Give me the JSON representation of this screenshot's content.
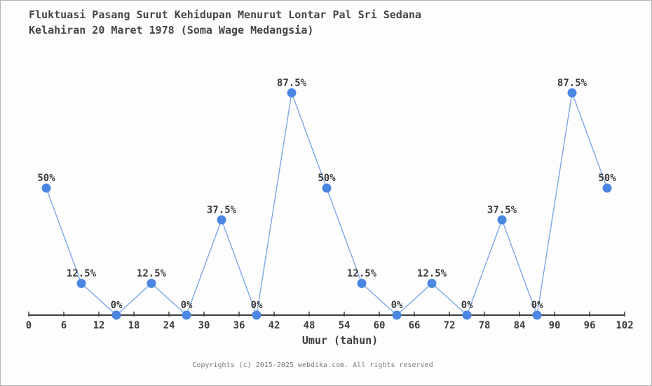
{
  "page": {
    "background": "#fdfdfd",
    "border_color": "#b3b3b3"
  },
  "header": {
    "title_line1": "Fluktuasi Pasang Surut Kehidupan Menurut Lontar Pal Sri Sedana",
    "title_line2": "Kelahiran 20 Maret 1978 (Soma Wage Medangsia)",
    "title_color": "#4a4444"
  },
  "footer": {
    "text": "Copyrights (c) 2015-2025 webdika.com. All rights reserved",
    "color": "#7a7a7a"
  },
  "chart_data": {
    "type": "line",
    "title": "Fluktuasi Pasang Surut Kehidupan Menurut Lontar Pal Sri Sedana Kelahiran 20 Maret 1978 (Soma Wage Medangsia)",
    "xlabel": "Umur (tahun)",
    "ylabel": "",
    "x": [
      3,
      9,
      15,
      21,
      27,
      33,
      39,
      45,
      51,
      57,
      63,
      69,
      75,
      81,
      87,
      93,
      99
    ],
    "values": [
      50,
      12.5,
      0,
      12.5,
      0,
      37.5,
      0,
      87.5,
      50,
      12.5,
      0,
      12.5,
      0,
      37.5,
      0,
      87.5,
      50
    ],
    "point_labels": [
      "50%",
      "12.5%",
      "0%",
      "12.5%",
      "0%",
      "37.5%",
      "0%",
      "87.5%",
      "50%",
      "12.5%",
      "0%",
      "12.5%",
      "0%",
      "37.5%",
      "0%",
      "87.5%",
      "50%"
    ],
    "x_ticks": [
      0,
      6,
      12,
      18,
      24,
      30,
      36,
      42,
      48,
      54,
      60,
      66,
      72,
      78,
      84,
      90,
      96,
      102
    ],
    "xlim": [
      0,
      102
    ],
    "ylim": [
      0,
      100
    ],
    "grid": false,
    "legend_position": "none",
    "line_color": "#7da7e8",
    "marker_color": "#4b86e3",
    "axis_color": "#3d3d3d",
    "label_color": "#3a3a3a"
  }
}
